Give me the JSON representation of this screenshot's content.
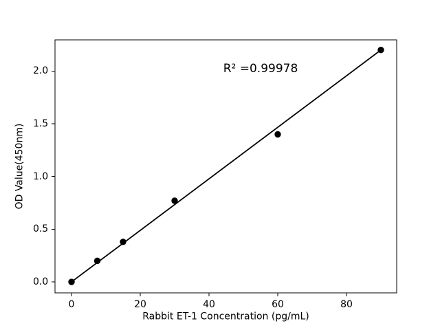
{
  "figure": {
    "background_color": "#ffffff",
    "foreground_color": "#000000"
  },
  "chart_data": {
    "type": "scatter",
    "title": "",
    "xlabel": "Rabbit ET-1 Concentration (pg/mL)",
    "ylabel": "OD Value(450nm)",
    "points": {
      "x": [
        0,
        7.5,
        15,
        30,
        60,
        90
      ],
      "y": [
        0.0,
        0.2,
        0.38,
        0.77,
        1.4,
        2.2
      ]
    },
    "fit_line": {
      "x": [
        0,
        90
      ],
      "y": [
        0.0,
        2.2
      ]
    },
    "annotation": {
      "text": "R² =0.99978",
      "r_squared": 0.99978,
      "x": 55,
      "y": 2.02
    },
    "xticks": {
      "values": [
        0,
        20,
        40,
        60,
        80
      ],
      "labels": [
        "0",
        "20",
        "40",
        "60",
        "80"
      ]
    },
    "yticks": {
      "values": [
        0,
        0.5,
        1,
        1.5,
        2
      ],
      "labels": [
        "0.0",
        "0.5",
        "1.0",
        "1.5",
        "2.0"
      ]
    },
    "xlim": [
      -4.8,
      94.6
    ],
    "ylim": [
      -0.104,
      2.296
    ],
    "grid": false,
    "legend": null,
    "marker_color": "#000000",
    "line_color": "#000000"
  }
}
